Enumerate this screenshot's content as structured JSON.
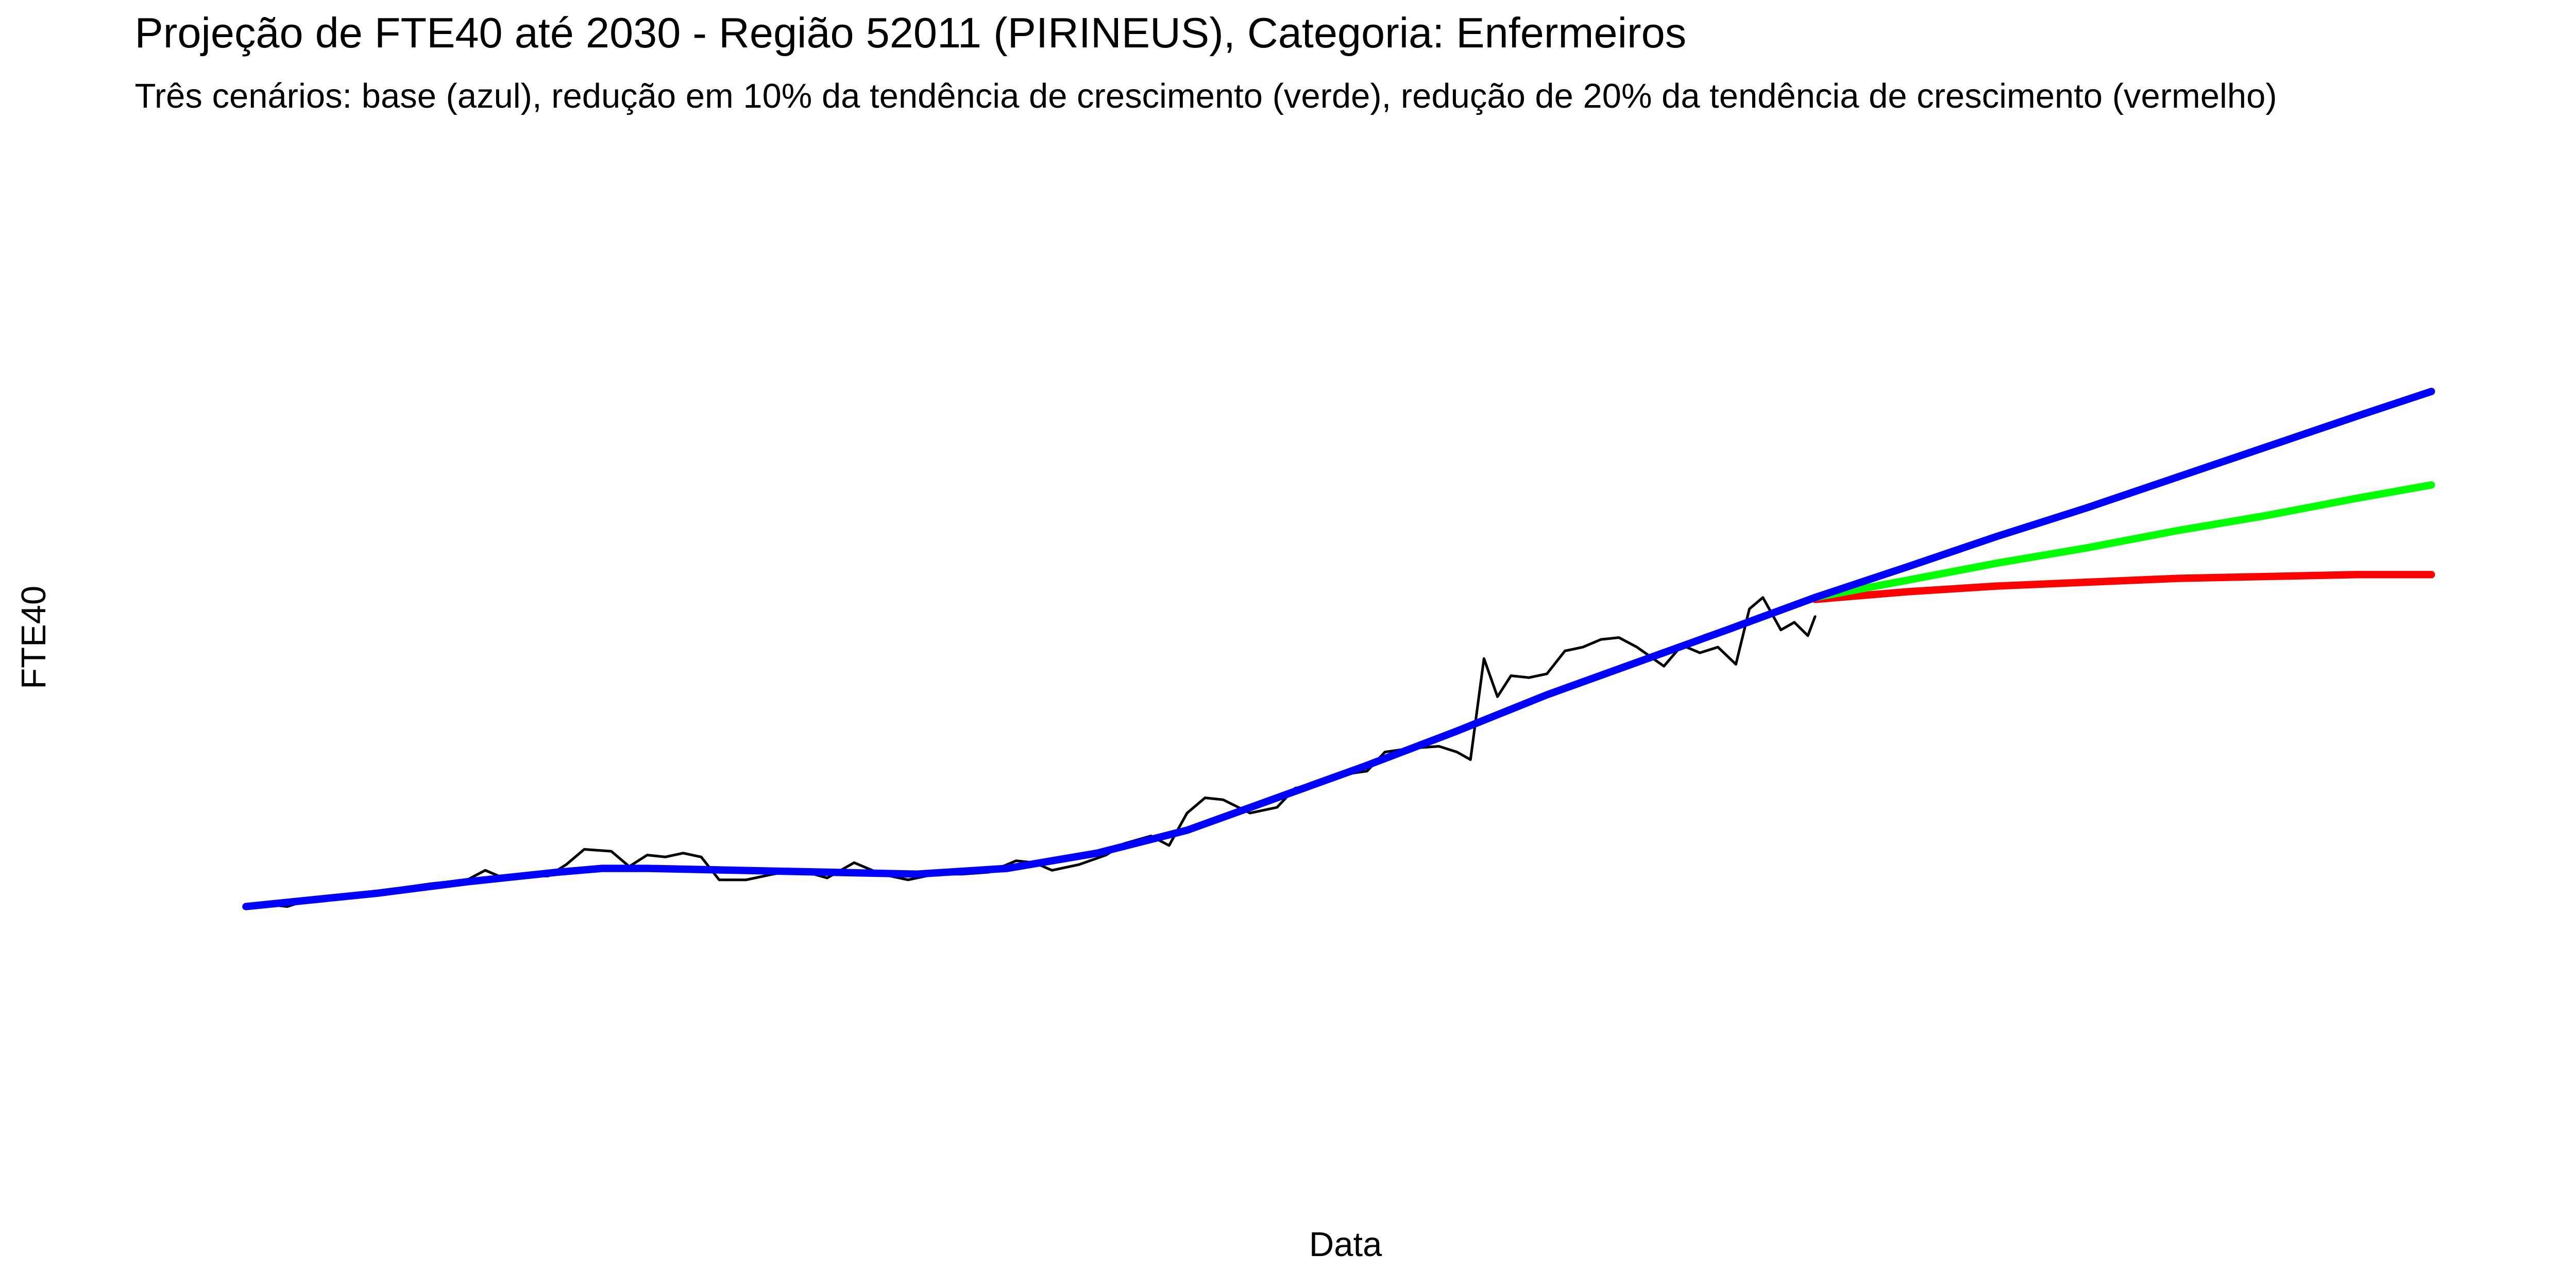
{
  "chart_data": {
    "type": "line",
    "title": "Projeção de FTE40 até 2030 - Região 52011 (PIRINEUS), Categoria: Enfermeiros",
    "subtitle": "Três cenários: base (azul), redução em 10% da tendência de crescimento (verde), redução de 20% da tendência de crescimento (vermelho)",
    "x_label": "Data",
    "y_label": "FTE40",
    "xlim": [
      2006.45,
      2033.2
    ],
    "xticks": [
      2007,
      2008,
      2009,
      2010,
      2011,
      2012,
      2013,
      2014,
      2015,
      2016,
      2017,
      2018,
      2019,
      2020,
      2021,
      2022,
      2023,
      2024,
      2025,
      2026,
      2027,
      2028,
      2029,
      2030,
      2031,
      2032,
      2033
    ],
    "ylim": [
      -23,
      498
    ],
    "yticks": [
      0,
      100,
      200,
      300,
      400
    ],
    "grid": true,
    "series": [
      {
        "color": "#000000",
        "linewidth": 1.6,
        "x": [
          2007.54,
          2007.8,
          2008.0,
          2008.2,
          2008.5,
          2008.8,
          2009.0,
          2009.3,
          2009.6,
          2010.0,
          2010.2,
          2010.4,
          2010.7,
          2010.9,
          2011.1,
          2011.3,
          2011.6,
          2011.8,
          2012.0,
          2012.2,
          2012.4,
          2012.6,
          2012.8,
          2013.1,
          2013.4,
          2013.7,
          2014.0,
          2014.3,
          2014.6,
          2014.9,
          2015.2,
          2015.5,
          2015.8,
          2016.1,
          2016.3,
          2016.5,
          2016.8,
          2017.1,
          2017.3,
          2017.6,
          2017.8,
          2018.0,
          2018.2,
          2018.4,
          2018.7,
          2019.0,
          2019.2,
          2019.4,
          2019.7,
          2020.0,
          2020.2,
          2020.5,
          2020.8,
          2021.0,
          2021.15,
          2021.3,
          2021.45,
          2021.6,
          2021.8,
          2022.0,
          2022.2,
          2022.4,
          2022.6,
          2022.8,
          2023.0,
          2023.3,
          2023.5,
          2023.7,
          2023.9,
          2024.1,
          2024.25,
          2024.4,
          2024.6,
          2024.75,
          2024.9,
          2024.98
        ],
        "values": [
          96,
          97,
          96,
          99,
          101,
          103,
          104,
          106,
          108,
          110,
          115,
          111,
          112,
          112,
          118,
          126,
          125,
          117,
          123,
          122,
          124,
          122,
          110,
          110,
          113,
          115,
          111,
          119,
          113,
          110,
          113,
          113,
          114,
          120,
          119,
          115,
          118,
          123,
          129,
          133,
          128,
          145,
          153,
          152,
          145,
          148,
          158,
          160,
          165,
          167,
          177,
          179,
          180,
          177,
          173,
          226,
          206,
          217,
          216,
          218,
          230,
          232,
          236,
          237,
          232,
          222,
          233,
          229,
          232,
          223,
          252,
          258,
          241,
          245,
          238,
          248
        ]
      },
      {
        "color": "#ff0000",
        "linewidth": 4.5,
        "x": [
          2024.98,
          2026,
          2027,
          2028,
          2029,
          2030,
          2031,
          2031.83
        ],
        "values": [
          257,
          261,
          264,
          266,
          268,
          269,
          270,
          270
        ]
      },
      {
        "color": "#00ff00",
        "linewidth": 4.5,
        "x": [
          2024.98,
          2026,
          2027,
          2028,
          2029,
          2030,
          2031,
          2031.83
        ],
        "values": [
          258,
          267,
          276,
          284,
          293,
          301,
          310,
          317
        ]
      },
      {
        "color": "#0000ff",
        "linewidth": 4.5,
        "x": [
          2024.98,
          2026,
          2027,
          2028,
          2029,
          2030,
          2031,
          2031.83
        ],
        "values": [
          258,
          274,
          290,
          305,
          321,
          337,
          353,
          366
        ]
      },
      {
        "color": "#0000ff",
        "linewidth": 4.5,
        "x": [
          2007.54,
          2009,
          2010,
          2011,
          2011.5,
          2012,
          2013,
          2014,
          2015,
          2016,
          2017,
          2018,
          2019,
          2020,
          2021,
          2022,
          2023,
          2024,
          2024.98
        ],
        "values": [
          96,
          103,
          109,
          114,
          116,
          116,
          115,
          114,
          113,
          116,
          124,
          136,
          153,
          170,
          188,
          207,
          224,
          241,
          258
        ]
      }
    ]
  }
}
